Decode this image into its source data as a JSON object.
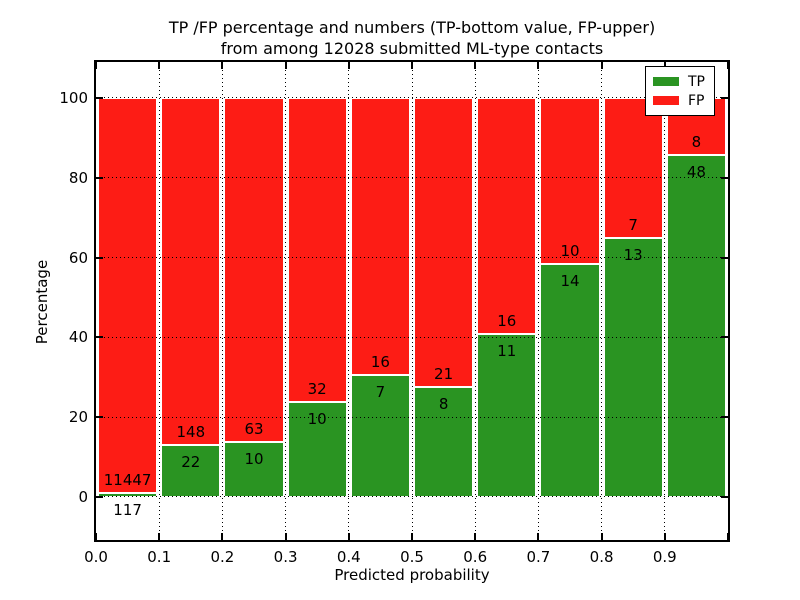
{
  "figure": {
    "title_line1": "TP /FP percentage and numbers (TP-bottom value, FP-upper)",
    "title_line2": "from among 12028 submitted ML-type contacts",
    "xlabel": "Predicted probability",
    "ylabel": "Percentage"
  },
  "legend": {
    "items": [
      {
        "label": "TP",
        "color": "#2a9422"
      },
      {
        "label": "FP",
        "color": "#fd1c15"
      }
    ]
  },
  "chart_data": {
    "type": "bar",
    "stacked": true,
    "normalized": "each bin scaled to 100%",
    "title": "TP /FP percentage and numbers (TP-bottom value, FP-upper) from among 12028 submitted ML-type contacts",
    "total_contacts": 12028,
    "xlabel": "Predicted probability",
    "ylabel": "Percentage",
    "xlim": [
      0.0,
      1.0
    ],
    "ylim": [
      -10.8,
      109.0
    ],
    "x_tick_labels": [
      "0.0",
      "0.1",
      "0.2",
      "0.3",
      "0.4",
      "0.5",
      "0.6",
      "0.7",
      "0.8",
      "0.9"
    ],
    "y_tick_values": [
      0,
      20,
      40,
      60,
      80,
      100
    ],
    "grid": "dotted",
    "legend_position": "upper right",
    "series_order_bottom_to_top": [
      "TP",
      "FP"
    ],
    "colors": {
      "tp": "#2a9422",
      "fp": "#fd1c15"
    },
    "bins": [
      {
        "range": [
          0.0,
          0.1
        ],
        "tp": 117,
        "fp": 11447,
        "tp_pct": 1.01,
        "fp_pct": 98.99
      },
      {
        "range": [
          0.1,
          0.2
        ],
        "tp": 22,
        "fp": 148,
        "tp_pct": 12.94,
        "fp_pct": 87.06
      },
      {
        "range": [
          0.2,
          0.3
        ],
        "tp": 10,
        "fp": 63,
        "tp_pct": 13.7,
        "fp_pct": 86.3
      },
      {
        "range": [
          0.3,
          0.4
        ],
        "tp": 10,
        "fp": 32,
        "tp_pct": 23.81,
        "fp_pct": 76.19
      },
      {
        "range": [
          0.4,
          0.5
        ],
        "tp": 7,
        "fp": 16,
        "tp_pct": 30.43,
        "fp_pct": 69.57
      },
      {
        "range": [
          0.5,
          0.6
        ],
        "tp": 8,
        "fp": 21,
        "tp_pct": 27.59,
        "fp_pct": 72.41
      },
      {
        "range": [
          0.6,
          0.7
        ],
        "tp": 11,
        "fp": 16,
        "tp_pct": 40.74,
        "fp_pct": 59.26
      },
      {
        "range": [
          0.7,
          0.8
        ],
        "tp": 14,
        "fp": 10,
        "tp_pct": 58.33,
        "fp_pct": 41.67
      },
      {
        "range": [
          0.8,
          0.9
        ],
        "tp": 13,
        "fp": 7,
        "tp_pct": 65.0,
        "fp_pct": 35.0
      },
      {
        "range": [
          0.9,
          1.0
        ],
        "tp": 48,
        "fp": 8,
        "tp_pct": 85.71,
        "fp_pct": 14.29
      }
    ]
  }
}
